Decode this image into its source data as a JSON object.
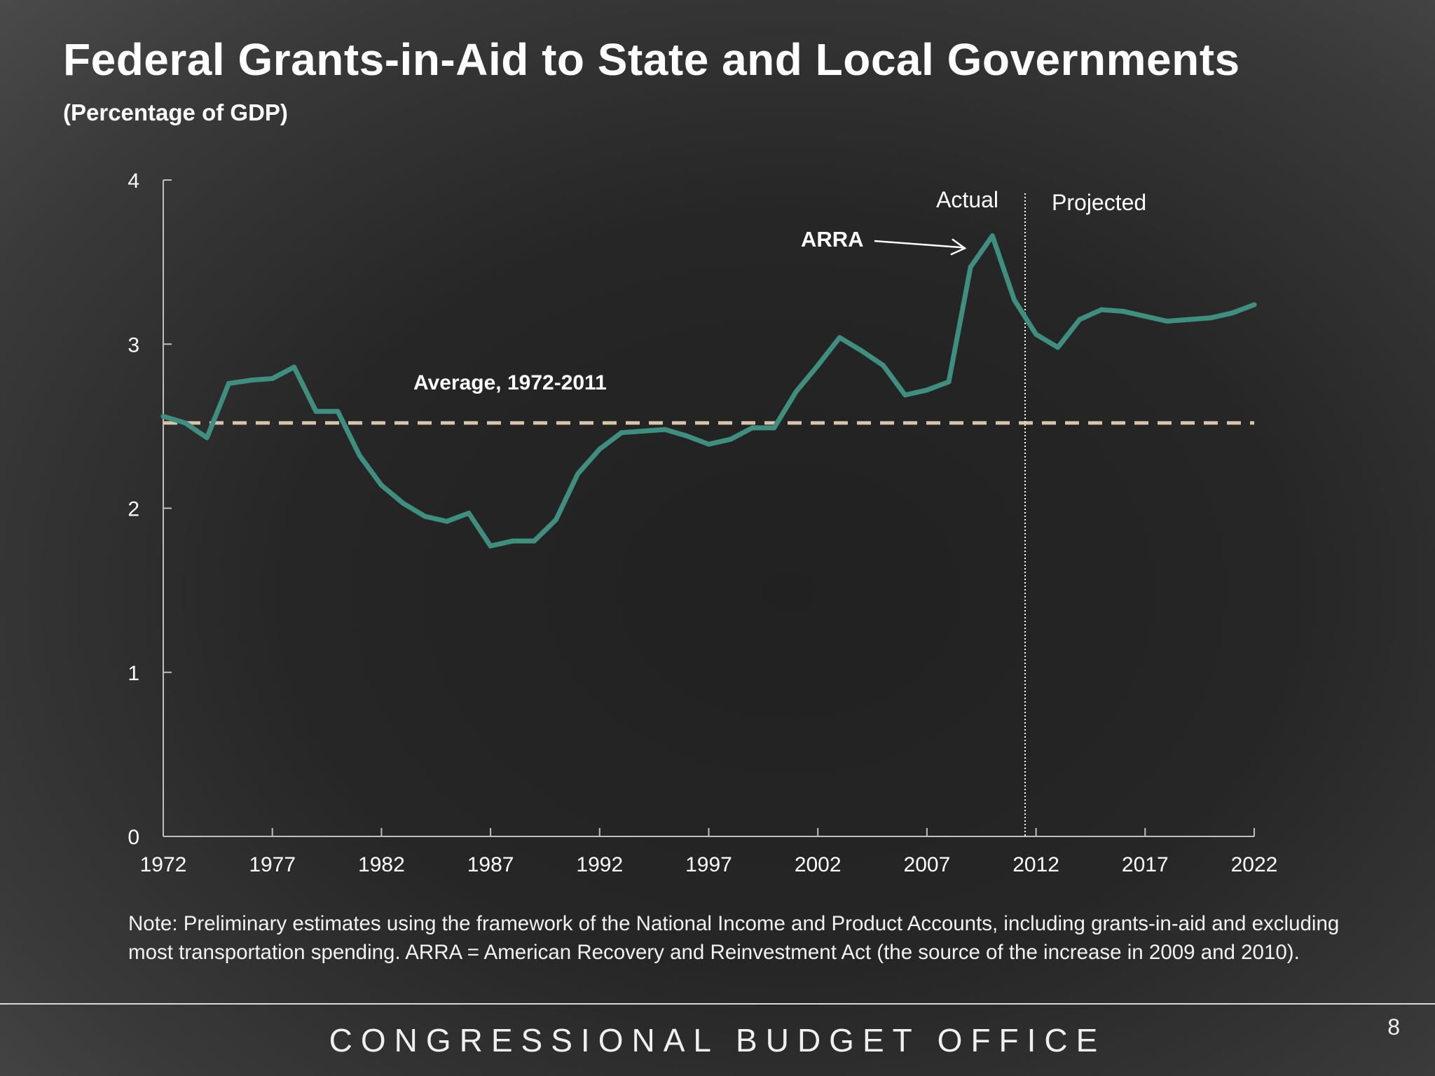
{
  "slide": {
    "title": "Federal Grants-in-Aid to State and Local Governments",
    "subtitle": "(Percentage of GDP)",
    "note": "Note: Preliminary estimates using the framework of the National Income and Product Accounts, including grants-in-aid and excluding most transportation spending. ARRA = American Recovery and Reinvestment Act (the source of the increase in 2009 and 2010).",
    "footer": "CONGRESSIONAL BUDGET OFFICE",
    "page_number": "8"
  },
  "chart_data": {
    "type": "line",
    "title": "",
    "xlabel": "",
    "ylabel": "",
    "xlim": [
      1972,
      2022
    ],
    "ylim": [
      0,
      4
    ],
    "grid": false,
    "x_ticks": [
      "1972",
      "1977",
      "1982",
      "1987",
      "1992",
      "1997",
      "2002",
      "2007",
      "2012",
      "2017",
      "2022"
    ],
    "y_ticks": [
      "0",
      "1",
      "2",
      "3",
      "4"
    ],
    "colors": {
      "series": "#3f8f80",
      "average": "#d8c4a8",
      "axis": "#bfbfbf"
    },
    "series": [
      {
        "x": [
          1972,
          1973,
          1974,
          1975,
          1976,
          1977,
          1978,
          1979,
          1980,
          1981,
          1982,
          1983,
          1984,
          1985,
          1986,
          1987,
          1988,
          1989,
          1990,
          1991,
          1992,
          1993,
          1994,
          1995,
          1996,
          1997,
          1998,
          1999,
          2000,
          2001,
          2002,
          2003,
          2004,
          2005,
          2006,
          2007,
          2008,
          2009,
          2010,
          2011,
          2012,
          2013,
          2014,
          2015,
          2016,
          2017,
          2018,
          2019,
          2020,
          2021,
          2022
        ],
        "values": [
          2.56,
          2.52,
          2.43,
          2.76,
          2.78,
          2.79,
          2.86,
          2.59,
          2.59,
          2.32,
          2.14,
          2.03,
          1.95,
          1.92,
          1.97,
          1.77,
          1.8,
          1.8,
          1.93,
          2.21,
          2.36,
          2.46,
          2.47,
          2.48,
          2.44,
          2.39,
          2.42,
          2.49,
          2.49,
          2.71,
          2.87,
          3.04,
          2.96,
          2.87,
          2.69,
          2.72,
          2.77,
          3.47,
          3.66,
          3.27,
          3.06,
          2.98,
          3.15,
          3.21,
          3.2,
          3.17,
          3.14,
          3.15,
          3.16,
          3.19,
          3.24
        ]
      }
    ],
    "average": {
      "label": "Average, 1972-2011",
      "value": 2.52
    },
    "divider": {
      "x": 2011.5,
      "left_label": "Actual",
      "right_label": "Projected"
    },
    "annotation": {
      "label": "ARRA",
      "target_x": 2008.8,
      "target_y": 3.58
    }
  }
}
